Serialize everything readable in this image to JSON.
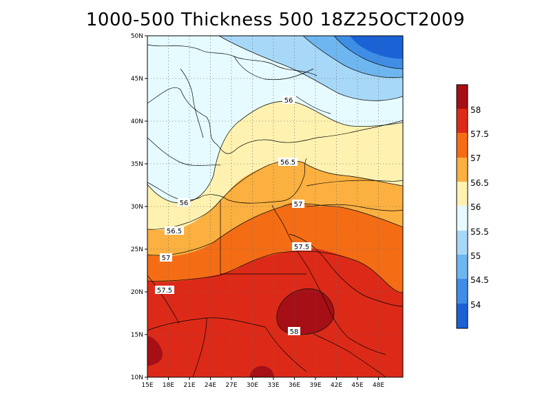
{
  "title": "1000-500 Thickness 500 18Z25OCT2009",
  "map": {
    "lon_ticks": [
      "15E",
      "18E",
      "21E",
      "24E",
      "27E",
      "30E",
      "33E",
      "36E",
      "39E",
      "42E",
      "45E",
      "48E"
    ],
    "lat_ticks": [
      "50N",
      "45N",
      "40N",
      "35N",
      "30N",
      "25N",
      "20N",
      "15N",
      "10N"
    ],
    "lon_range": [
      15,
      50
    ],
    "lat_range": [
      10,
      50
    ],
    "grid": true,
    "contour_labels": [
      "56",
      "56",
      "56.5",
      "56.5",
      "57",
      "57",
      "57.5",
      "57.5",
      "58"
    ]
  },
  "colorbar": {
    "labels": [
      "58",
      "57.5",
      "57",
      "56.5",
      "56",
      "55.5",
      "55",
      "54.5",
      "54"
    ],
    "colors": [
      "#a50f15",
      "#dd2a18",
      "#f46d15",
      "#fbb040",
      "#fff2b0",
      "#e6fbff",
      "#a8d8f8",
      "#6eb6f0",
      "#3f8ee6",
      "#1a62d6"
    ]
  },
  "fill_colors": {
    "c53_5": "#1a62d6",
    "c54": "#3f8ee6",
    "c54_5": "#6eb6f0",
    "c55": "#a8d8f8",
    "c55_5": "#e6fbff",
    "c56": "#fff2b0",
    "c56_5": "#fbb040",
    "c57": "#f46d15",
    "c57_5": "#dd2a18",
    "c58": "#a50f15"
  }
}
